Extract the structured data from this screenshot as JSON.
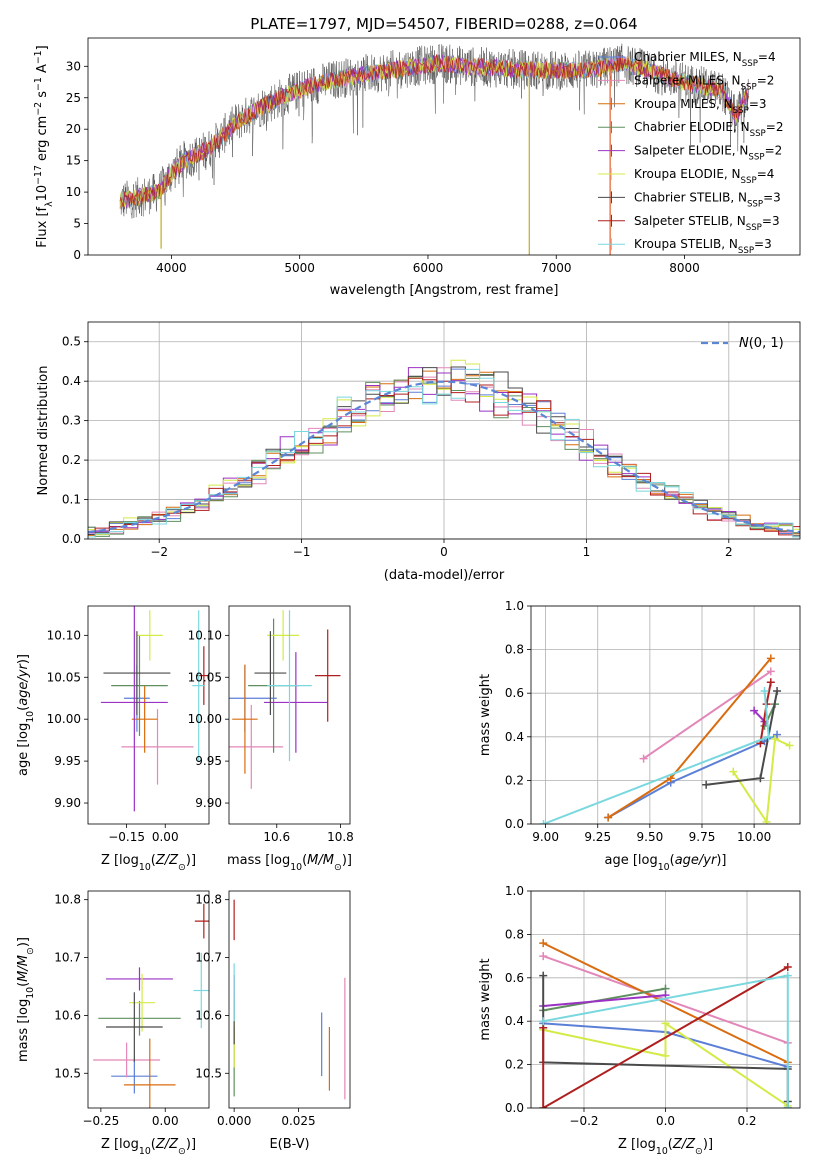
{
  "figure_title": "PLATE=1797, MJD=54507, FIBERID=0288, z=0.064",
  "legend_entries": [
    {
      "label": "Chabrier MILES, N_SSP=4",
      "base": "Chabrier MILES, N",
      "sub": "SSP",
      "tail": "=4",
      "color": "#5b7fd6"
    },
    {
      "label": "Salpeter MILES, N_SSP=2",
      "base": "Salpeter MILES, N",
      "sub": "SSP",
      "tail": "=2",
      "color": "#e387b8"
    },
    {
      "label": "Kroupa MILES, N_SSP=3",
      "base": "Kroupa MILES, N",
      "sub": "SSP",
      "tail": "=3",
      "color": "#d86c0f"
    },
    {
      "label": "Chabrier ELODIE, N_SSP=2",
      "base": "Chabrier ELODIE, N",
      "sub": "SSP",
      "tail": "=2",
      "color": "#5f8f5f"
    },
    {
      "label": "Salpeter ELODIE, N_SSP=2",
      "base": "Salpeter ELODIE, N",
      "sub": "SSP",
      "tail": "=2",
      "color": "#9b32c4"
    },
    {
      "label": "Kroupa ELODIE, N_SSP=4",
      "base": "Kroupa ELODIE, N",
      "sub": "SSP",
      "tail": "=4",
      "color": "#d4ea46"
    },
    {
      "label": "Chabrier STELIB, N_SSP=3",
      "base": "Chabrier STELIB, N",
      "sub": "SSP",
      "tail": "=3",
      "color": "#4a4a4a"
    },
    {
      "label": "Salpeter STELIB, N_SSP=3",
      "base": "Salpeter STELIB, N",
      "sub": "SSP",
      "tail": "=3",
      "color": "#b01f1f"
    },
    {
      "label": "Kroupa STELIB, N_SSP=3",
      "base": "Kroupa STELIB, N",
      "sub": "SSP",
      "tail": "=3",
      "color": "#79d8de"
    }
  ],
  "chart_data": [
    {
      "id": "spectrum",
      "type": "line",
      "title": "PLATE=1797, MJD=54507, FIBERID=0288, z=0.064",
      "xlabel": "wavelength [Angstrom, rest frame]",
      "ylabel": "Flux [f_λ 10^-17 erg cm^-2 s^-1 A^-1]",
      "xlim": [
        3350,
        8900
      ],
      "ylim": [
        0,
        34.5
      ],
      "xticks": [
        4000,
        5000,
        6000,
        7000,
        8000
      ],
      "yticks": [
        0,
        5,
        10,
        15,
        20,
        25,
        30
      ],
      "legend_position": "right",
      "continuum": [
        [
          3600,
          8.5
        ],
        [
          3800,
          9.5
        ],
        [
          3900,
          10
        ],
        [
          4000,
          13
        ],
        [
          4100,
          15
        ],
        [
          4300,
          17
        ],
        [
          4500,
          21
        ],
        [
          4700,
          23.5
        ],
        [
          4900,
          25.5
        ],
        [
          5100,
          27
        ],
        [
          5300,
          28
        ],
        [
          5500,
          28.7
        ],
        [
          5700,
          29.3
        ],
        [
          5900,
          30
        ],
        [
          6100,
          30.5
        ],
        [
          6300,
          30
        ],
        [
          6500,
          29.8
        ],
        [
          6700,
          29.5
        ],
        [
          6900,
          29.4
        ],
        [
          7100,
          29.3
        ],
        [
          7300,
          29.5
        ],
        [
          7500,
          30.5
        ],
        [
          7700,
          29.5
        ],
        [
          7900,
          28
        ],
        [
          8100,
          27
        ],
        [
          8300,
          26
        ],
        [
          8400,
          22
        ],
        [
          8500,
          26
        ]
      ],
      "spikes_down": [
        {
          "x": 3920,
          "y": 1
        },
        {
          "x": 6790,
          "y": 0
        },
        {
          "x": 7420,
          "y": 0
        }
      ]
    },
    {
      "id": "residual_histogram",
      "type": "line",
      "xlabel": "(data-model)/error",
      "ylabel": "Normed distribution",
      "xlim": [
        -2.5,
        2.5
      ],
      "ylim": [
        0,
        0.55
      ],
      "xticks": [
        -2,
        -1,
        0,
        1,
        2
      ],
      "yticks": [
        0.0,
        0.1,
        0.2,
        0.3,
        0.4,
        0.5
      ],
      "legend_position": "top-right",
      "reference": {
        "name": "N(0,1)",
        "mean": 0,
        "sigma": 1
      },
      "bin_width": 0.1
    },
    {
      "id": "age_vs_Z",
      "type": "scatter",
      "xlabel": "Z [log10(Z/Z_sun)]",
      "ylabel": "age [log10(age/yr)]",
      "xlim": [
        -0.3,
        0.17
      ],
      "ylim": [
        9.875,
        10.135
      ],
      "xticks": [
        -0.15,
        0.0
      ],
      "yticks": [
        9.9,
        9.95,
        10.0,
        10.05,
        10.1
      ],
      "points": [
        {
          "x": -0.11,
          "y": 10.025,
          "xerr": 0.05,
          "yerr": 0.04,
          "color": "#5b7fd6"
        },
        {
          "x": -0.03,
          "y": 9.967,
          "xerr": 0.14,
          "yerr": 0.045,
          "color": "#e387b8"
        },
        {
          "x": -0.08,
          "y": 10.0,
          "xerr": 0.05,
          "yerr": 0.04,
          "color": "#d86c0f"
        },
        {
          "x": -0.1,
          "y": 10.04,
          "xerr": 0.11,
          "yerr": 0.06,
          "color": "#5f8f5f"
        },
        {
          "x": -0.12,
          "y": 10.02,
          "xerr": 0.13,
          "yerr": 0.13,
          "color": "#9b32c4"
        },
        {
          "x": -0.06,
          "y": 10.1,
          "xerr": 0.05,
          "yerr": 0.03,
          "color": "#d4ea46"
        },
        {
          "x": -0.11,
          "y": 10.055,
          "xerr": 0.13,
          "yerr": 0.05,
          "color": "#4a4a4a"
        },
        {
          "x": 0.15,
          "y": 10.052,
          "xerr": 0.03,
          "yerr": 0.035,
          "color": "#b01f1f"
        },
        {
          "x": 0.13,
          "y": 10.04,
          "xerr": 0.025,
          "yerr": 0.09,
          "color": "#79d8de"
        }
      ]
    },
    {
      "id": "age_vs_mass",
      "type": "scatter",
      "xlabel": "mass [log10(M/M_sun)]",
      "ylabel": "",
      "xlim": [
        10.45,
        10.83
      ],
      "ylim": [
        9.875,
        10.135
      ],
      "xticks": [
        10.6,
        10.8
      ],
      "yticks": [
        9.9,
        9.95,
        10.0,
        10.05,
        10.1
      ],
      "points": [
        {
          "x": 10.5,
          "y": 10.025,
          "xerr": 0.1,
          "yerr": 0.04,
          "color": "#5b7fd6"
        },
        {
          "x": 10.52,
          "y": 9.967,
          "xerr": 0.1,
          "yerr": 0.05,
          "color": "#e387b8"
        },
        {
          "x": 10.5,
          "y": 10.0,
          "xerr": 0.04,
          "yerr": 0.065,
          "color": "#d86c0f"
        },
        {
          "x": 10.59,
          "y": 10.04,
          "xerr": 0.08,
          "yerr": 0.08,
          "color": "#5f8f5f"
        },
        {
          "x": 10.66,
          "y": 10.02,
          "xerr": 0.1,
          "yerr": 0.06,
          "color": "#9b32c4"
        },
        {
          "x": 10.62,
          "y": 10.1,
          "xerr": 0.05,
          "yerr": 0.03,
          "color": "#d4ea46"
        },
        {
          "x": 10.58,
          "y": 10.055,
          "xerr": 0.05,
          "yerr": 0.05,
          "color": "#4a4a4a"
        },
        {
          "x": 10.76,
          "y": 10.052,
          "xerr": 0.04,
          "yerr": 0.055,
          "color": "#b01f1f"
        },
        {
          "x": 10.64,
          "y": 10.04,
          "xerr": 0.07,
          "yerr": 0.09,
          "color": "#79d8de"
        }
      ]
    },
    {
      "id": "weight_vs_age",
      "type": "line",
      "xlabel": "age [log10(age/yr)]",
      "ylabel": "mass weight",
      "xlim": [
        8.93,
        10.22
      ],
      "ylim": [
        0.0,
        1.0
      ],
      "xticks": [
        9.0,
        9.25,
        9.5,
        9.75,
        10.0
      ],
      "yticks": [
        0.0,
        0.2,
        0.4,
        0.6,
        0.8,
        1.0
      ],
      "series": [
        {
          "x": [
            9.3,
            9.6,
            10.05,
            10.11
          ],
          "y": [
            0.03,
            0.19,
            0.38,
            0.41
          ],
          "color": "#5b7fd6"
        },
        {
          "x": [
            9.47,
            10.08
          ],
          "y": [
            0.3,
            0.7
          ],
          "color": "#e387b8"
        },
        {
          "x": [
            9.3,
            9.6,
            10.08
          ],
          "y": [
            0.03,
            0.21,
            0.76
          ],
          "color": "#d86c0f"
        },
        {
          "x": [
            10.05,
            10.1
          ],
          "y": [
            0.45,
            0.55
          ],
          "color": "#5f8f5f"
        },
        {
          "x": [
            10.0,
            10.05
          ],
          "y": [
            0.52,
            0.47
          ],
          "color": "#9b32c4"
        },
        {
          "x": [
            9.9,
            10.06,
            10.1,
            10.17
          ],
          "y": [
            0.24,
            0.01,
            0.39,
            0.36
          ],
          "color": "#d4ea46"
        },
        {
          "x": [
            9.77,
            10.03,
            10.11
          ],
          "y": [
            0.18,
            0.21,
            0.61
          ],
          "color": "#4a4a4a"
        },
        {
          "x": [
            10.03,
            10.06,
            10.08
          ],
          "y": [
            0.37,
            0.55,
            0.65
          ],
          "color": "#b01f1f"
        },
        {
          "x": [
            8.99,
            10.07,
            10.05
          ],
          "y": [
            0.0,
            0.4,
            0.61
          ],
          "color": "#79d8de"
        }
      ]
    },
    {
      "id": "mass_vs_Z",
      "type": "scatter",
      "xlabel": "Z [log10(Z/Z_sun)]",
      "ylabel": "mass [log10(M/M_sun)]",
      "xlim": [
        -0.3,
        0.17
      ],
      "ylim": [
        10.44,
        10.815
      ],
      "xticks": [
        -0.25,
        0.0
      ],
      "yticks": [
        10.5,
        10.6,
        10.7,
        10.8
      ],
      "points": [
        {
          "x": -0.12,
          "y": 10.495,
          "xerr": 0.09,
          "yerr": 0.03,
          "color": "#5b7fd6"
        },
        {
          "x": -0.15,
          "y": 10.523,
          "xerr": 0.13,
          "yerr": 0.03,
          "color": "#e387b8"
        },
        {
          "x": -0.06,
          "y": 10.48,
          "xerr": 0.1,
          "yerr": 0.08,
          "color": "#d86c0f"
        },
        {
          "x": -0.1,
          "y": 10.595,
          "xerr": 0.16,
          "yerr": 0.03,
          "color": "#5f8f5f"
        },
        {
          "x": -0.1,
          "y": 10.663,
          "xerr": 0.13,
          "yerr": 0.02,
          "color": "#9b32c4"
        },
        {
          "x": -0.09,
          "y": 10.622,
          "xerr": 0.05,
          "yerr": 0.05,
          "color": "#d4ea46"
        },
        {
          "x": -0.12,
          "y": 10.58,
          "xerr": 0.11,
          "yerr": 0.06,
          "color": "#4a4a4a"
        },
        {
          "x": 0.15,
          "y": 10.763,
          "xerr": 0.035,
          "yerr": 0.03,
          "color": "#b01f1f"
        },
        {
          "x": 0.14,
          "y": 10.643,
          "xerr": 0.03,
          "yerr": 0.065,
          "color": "#79d8de"
        }
      ]
    },
    {
      "id": "mass_vs_EBV",
      "type": "scatter",
      "xlabel": "E(B-V)",
      "ylabel": "",
      "xlim": [
        -0.002,
        0.045
      ],
      "ylim": [
        10.44,
        10.815
      ],
      "xticks": [
        0.0,
        0.025
      ],
      "yticks": [
        10.5,
        10.6,
        10.7,
        10.8
      ],
      "points": [
        {
          "x": 0.034,
          "y": 10.55,
          "yerr": 0.055,
          "color": "#5b7fd6"
        },
        {
          "x": 0.043,
          "y": 10.56,
          "yerr": 0.105,
          "color": "#e387b8"
        },
        {
          "x": 0.037,
          "y": 10.525,
          "yerr": 0.055,
          "color": "#d86c0f"
        },
        {
          "x": 0.0,
          "y": 10.52,
          "yerr": 0.06,
          "color": "#5f8f5f"
        },
        {
          "x": 0.0,
          "y": 10.65,
          "yerr": 0.02,
          "color": "#9b32c4"
        },
        {
          "x": 0.0,
          "y": 10.55,
          "yerr": 0.04,
          "color": "#d4ea46"
        },
        {
          "x": 0.0,
          "y": 10.59,
          "yerr": 0.04,
          "color": "#4a4a4a"
        },
        {
          "x": 0.0,
          "y": 10.765,
          "yerr": 0.035,
          "color": "#b01f1f"
        },
        {
          "x": 0.0,
          "y": 10.64,
          "yerr": 0.05,
          "color": "#79d8de"
        }
      ]
    },
    {
      "id": "weight_vs_Z",
      "type": "line",
      "xlabel": "Z [log10(Z/Z_sun)]",
      "ylabel": "mass weight",
      "xlim": [
        -0.33,
        0.33
      ],
      "ylim": [
        0.0,
        1.0
      ],
      "xticks": [
        -0.2,
        0.0,
        0.2
      ],
      "yticks": [
        0.0,
        0.2,
        0.4,
        0.6,
        0.8,
        1.0
      ],
      "series": [
        {
          "x": [
            -0.3,
            0.0,
            0.3
          ],
          "y": [
            0.39,
            0.35,
            0.19
          ],
          "color": "#5b7fd6"
        },
        {
          "x": [
            -0.3,
            0.3
          ],
          "y": [
            0.7,
            0.3
          ],
          "color": "#e387b8"
        },
        {
          "x": [
            -0.3,
            0.3
          ],
          "y": [
            0.76,
            0.21
          ],
          "color": "#d86c0f"
        },
        {
          "x": [
            -0.3,
            0.0
          ],
          "y": [
            0.45,
            0.55
          ],
          "color": "#5f8f5f"
        },
        {
          "x": [
            -0.3,
            0.0
          ],
          "y": [
            0.47,
            0.52
          ],
          "color": "#9b32c4"
        },
        {
          "x": [
            -0.3,
            0.0,
            0.0,
            0.3
          ],
          "y": [
            0.36,
            0.24,
            0.39,
            0.01
          ],
          "color": "#d4ea46"
        },
        {
          "x": [
            -0.3,
            -0.3,
            0.3,
            0.3,
            0.3
          ],
          "y": [
            0.61,
            0.21,
            0.18,
            0.03,
            0.0
          ],
          "color": "#4a4a4a"
        },
        {
          "x": [
            -0.3,
            -0.3,
            0.3
          ],
          "y": [
            0.37,
            0.0,
            0.65
          ],
          "color": "#b01f1f"
        },
        {
          "x": [
            -0.3,
            0.3,
            0.3
          ],
          "y": [
            0.4,
            0.61,
            0.0
          ],
          "color": "#79d8de"
        }
      ]
    }
  ]
}
